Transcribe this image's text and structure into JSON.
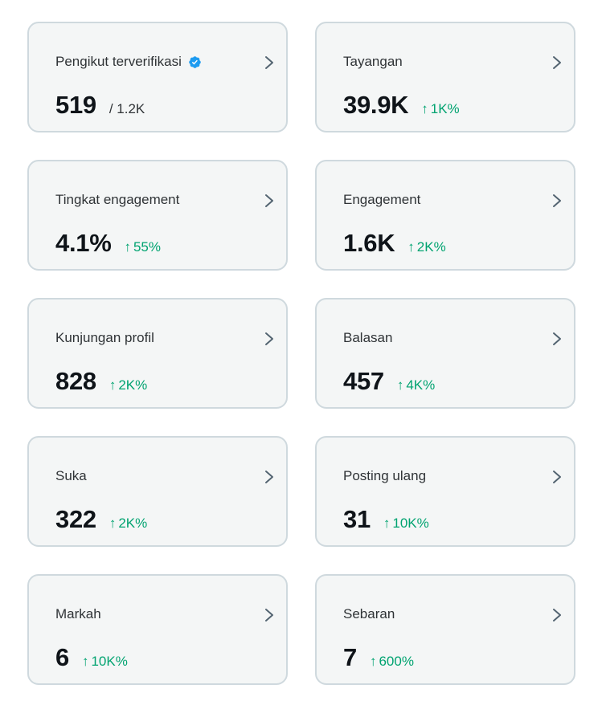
{
  "colors": {
    "card_background": "#f4f6f6",
    "card_border": "#cfd9de",
    "positive_change": "#00a370",
    "verified_badge": "#1d9bf0"
  },
  "icons": {
    "verified": "verified-badge-icon",
    "chevron": "chevron-right-icon",
    "arrow_up": "↑"
  },
  "cards": [
    {
      "label": "Pengikut terverifikasi",
      "value": "519",
      "sub": "/ 1.2K",
      "change": "",
      "verified": true
    },
    {
      "label": "Tayangan",
      "value": "39.9K",
      "sub": "",
      "change": "1K%"
    },
    {
      "label": "Tingkat engagement",
      "value": "4.1%",
      "sub": "",
      "change": "55%"
    },
    {
      "label": "Engagement",
      "value": "1.6K",
      "sub": "",
      "change": "2K%"
    },
    {
      "label": "Kunjungan profil",
      "value": "828",
      "sub": "",
      "change": "2K%"
    },
    {
      "label": "Balasan",
      "value": "457",
      "sub": "",
      "change": "4K%"
    },
    {
      "label": "Suka",
      "value": "322",
      "sub": "",
      "change": "2K%"
    },
    {
      "label": "Posting ulang",
      "value": "31",
      "sub": "",
      "change": "10K%"
    },
    {
      "label": "Markah",
      "value": "6",
      "sub": "",
      "change": "10K%"
    },
    {
      "label": "Sebaran",
      "value": "7",
      "sub": "",
      "change": "600%"
    }
  ]
}
